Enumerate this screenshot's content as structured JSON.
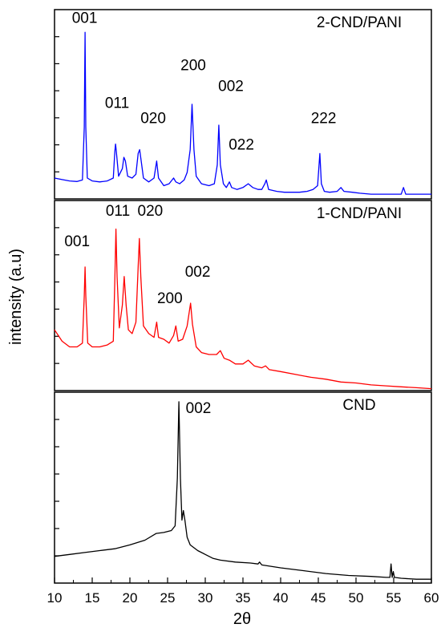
{
  "chart_data": {
    "type": "line",
    "xlabel": "2θ",
    "ylabel": "intensity (a.u)",
    "xlim": [
      10,
      60
    ],
    "xticks": [
      10,
      15,
      20,
      25,
      30,
      35,
      40,
      45,
      50,
      55,
      60
    ],
    "panels": [
      {
        "name": "2-CND/PANI",
        "color": "#0000ff",
        "ylim": [
          0,
          100
        ],
        "points": [
          [
            10,
            11
          ],
          [
            11,
            10.2
          ],
          [
            12,
            9.5
          ],
          [
            13,
            9.2
          ],
          [
            13.7,
            10
          ],
          [
            13.95,
            38
          ],
          [
            14.05,
            88
          ],
          [
            14.15,
            38
          ],
          [
            14.35,
            11
          ],
          [
            15,
            9.5
          ],
          [
            16,
            9
          ],
          [
            17,
            9.5
          ],
          [
            17.8,
            11
          ],
          [
            18.0,
            25
          ],
          [
            18.1,
            29
          ],
          [
            18.2,
            25
          ],
          [
            18.5,
            12
          ],
          [
            19.0,
            16
          ],
          [
            19.2,
            22
          ],
          [
            19.4,
            20
          ],
          [
            19.7,
            12
          ],
          [
            20.3,
            11
          ],
          [
            20.8,
            13
          ],
          [
            21.1,
            24
          ],
          [
            21.3,
            26
          ],
          [
            21.5,
            20
          ],
          [
            21.8,
            11
          ],
          [
            22.5,
            9
          ],
          [
            23.2,
            11
          ],
          [
            23.55,
            20
          ],
          [
            23.8,
            11
          ],
          [
            24.5,
            7
          ],
          [
            25.2,
            8
          ],
          [
            25.8,
            11
          ],
          [
            26.1,
            9
          ],
          [
            26.6,
            8
          ],
          [
            27.2,
            10
          ],
          [
            27.6,
            14
          ],
          [
            28.0,
            26
          ],
          [
            28.25,
            50
          ],
          [
            28.5,
            26
          ],
          [
            28.8,
            12
          ],
          [
            29.5,
            8
          ],
          [
            30.5,
            7
          ],
          [
            31.2,
            8
          ],
          [
            31.6,
            18
          ],
          [
            31.8,
            39
          ],
          [
            32.0,
            18
          ],
          [
            32.4,
            8
          ],
          [
            32.8,
            6
          ],
          [
            33.2,
            9
          ],
          [
            33.5,
            6
          ],
          [
            34.2,
            5
          ],
          [
            35.0,
            6
          ],
          [
            35.7,
            8
          ],
          [
            36.3,
            6
          ],
          [
            37.0,
            5
          ],
          [
            37.5,
            5
          ],
          [
            37.9,
            8
          ],
          [
            38.1,
            10
          ],
          [
            38.4,
            5
          ],
          [
            39.5,
            4
          ],
          [
            40.5,
            3.5
          ],
          [
            41.5,
            3.5
          ],
          [
            42.5,
            3.5
          ],
          [
            43.5,
            4
          ],
          [
            44.3,
            5
          ],
          [
            44.9,
            7
          ],
          [
            45.2,
            24
          ],
          [
            45.4,
            8
          ],
          [
            45.8,
            4
          ],
          [
            46.5,
            3.5
          ],
          [
            47.5,
            4
          ],
          [
            48.0,
            6
          ],
          [
            48.4,
            4
          ],
          [
            49.5,
            3.5
          ],
          [
            50.5,
            3
          ],
          [
            52,
            2.5
          ],
          [
            53.5,
            2.5
          ],
          [
            55,
            2.5
          ],
          [
            56.0,
            2.5
          ],
          [
            56.3,
            6
          ],
          [
            56.6,
            2.5
          ],
          [
            57.5,
            2.5
          ],
          [
            59,
            2.5
          ],
          [
            60,
            2.5
          ]
        ],
        "annotations": [
          {
            "text": "001",
            "x": 14.0,
            "y": 93
          },
          {
            "text": "011",
            "x": 18.3,
            "y": 48
          },
          {
            "text": "020",
            "x": 23.1,
            "y": 40
          },
          {
            "text": "200",
            "x": 28.4,
            "y": 68
          },
          {
            "text": "002",
            "x": 33.4,
            "y": 57
          },
          {
            "text": "022",
            "x": 34.8,
            "y": 26
          },
          {
            "text": "222",
            "x": 45.7,
            "y": 40
          }
        ]
      },
      {
        "name": "1-CND/PANI",
        "color": "#ff0000",
        "ylim": [
          0,
          100
        ],
        "points": [
          [
            10,
            32
          ],
          [
            11,
            26
          ],
          [
            12,
            23
          ],
          [
            13,
            23
          ],
          [
            13.7,
            25
          ],
          [
            13.95,
            50
          ],
          [
            14.05,
            65
          ],
          [
            14.15,
            50
          ],
          [
            14.4,
            25
          ],
          [
            15,
            23
          ],
          [
            16,
            23
          ],
          [
            17,
            24
          ],
          [
            17.8,
            26
          ],
          [
            18.0,
            58
          ],
          [
            18.15,
            85
          ],
          [
            18.3,
            60
          ],
          [
            18.6,
            33
          ],
          [
            19.0,
            45
          ],
          [
            19.25,
            60
          ],
          [
            19.5,
            45
          ],
          [
            19.8,
            32
          ],
          [
            20.3,
            30
          ],
          [
            20.8,
            36
          ],
          [
            21.1,
            65
          ],
          [
            21.25,
            80
          ],
          [
            21.45,
            60
          ],
          [
            21.8,
            34
          ],
          [
            22.5,
            30
          ],
          [
            23.2,
            28
          ],
          [
            23.55,
            36
          ],
          [
            23.8,
            28
          ],
          [
            24.5,
            27
          ],
          [
            25.2,
            25
          ],
          [
            25.8,
            29
          ],
          [
            26.1,
            34
          ],
          [
            26.4,
            26
          ],
          [
            27.0,
            27
          ],
          [
            27.6,
            34
          ],
          [
            28.05,
            46
          ],
          [
            28.3,
            35
          ],
          [
            28.8,
            23
          ],
          [
            29.5,
            20
          ],
          [
            30.5,
            19
          ],
          [
            31.5,
            19
          ],
          [
            32.0,
            21
          ],
          [
            32.5,
            17
          ],
          [
            33.2,
            16
          ],
          [
            34,
            14
          ],
          [
            35,
            14
          ],
          [
            35.7,
            16
          ],
          [
            36.5,
            13
          ],
          [
            37.5,
            12
          ],
          [
            38.0,
            13
          ],
          [
            38.5,
            11
          ],
          [
            40,
            10
          ],
          [
            42,
            8.5
          ],
          [
            44,
            7
          ],
          [
            46,
            6
          ],
          [
            48,
            4.5
          ],
          [
            50,
            4
          ],
          [
            52,
            3
          ],
          [
            54,
            2.5
          ],
          [
            56,
            2
          ],
          [
            58,
            1.5
          ],
          [
            60,
            1
          ]
        ],
        "annotations": [
          {
            "text": "001",
            "x": 13.0,
            "y": 76
          },
          {
            "text": "011",
            "x": 18.4,
            "y": 92
          },
          {
            "text": "020",
            "x": 22.7,
            "y": 92
          },
          {
            "text": "200",
            "x": 25.3,
            "y": 46
          },
          {
            "text": "002",
            "x": 29.0,
            "y": 60
          }
        ]
      },
      {
        "name": "CND",
        "color": "#000000",
        "ylim": [
          0,
          100
        ],
        "points": [
          [
            10,
            14
          ],
          [
            12,
            15
          ],
          [
            14,
            16
          ],
          [
            16,
            17
          ],
          [
            18,
            18
          ],
          [
            20,
            20
          ],
          [
            22,
            22.5
          ],
          [
            23.5,
            26
          ],
          [
            24.5,
            26.5
          ],
          [
            25.5,
            27.5
          ],
          [
            26.0,
            30
          ],
          [
            26.3,
            55
          ],
          [
            26.5,
            95
          ],
          [
            26.7,
            55
          ],
          [
            26.9,
            33
          ],
          [
            27.1,
            38
          ],
          [
            27.3,
            33
          ],
          [
            27.6,
            24
          ],
          [
            28.0,
            20
          ],
          [
            29,
            17
          ],
          [
            30,
            15
          ],
          [
            31,
            13
          ],
          [
            32,
            12
          ],
          [
            34,
            11
          ],
          [
            36,
            10.5
          ],
          [
            37.0,
            10
          ],
          [
            37.2,
            11
          ],
          [
            37.5,
            9.5
          ],
          [
            40,
            8
          ],
          [
            43,
            6.5
          ],
          [
            46,
            5
          ],
          [
            49,
            4
          ],
          [
            52,
            3.5
          ],
          [
            54,
            3
          ],
          [
            54.5,
            3
          ],
          [
            54.65,
            10
          ],
          [
            54.8,
            3
          ],
          [
            54.95,
            6
          ],
          [
            55.1,
            3
          ],
          [
            56,
            2.5
          ],
          [
            58,
            2
          ],
          [
            60,
            2
          ]
        ],
        "annotations": [
          {
            "text": "002",
            "x": 29.1,
            "y": 89
          }
        ]
      }
    ],
    "grid": false,
    "legend": "none"
  }
}
